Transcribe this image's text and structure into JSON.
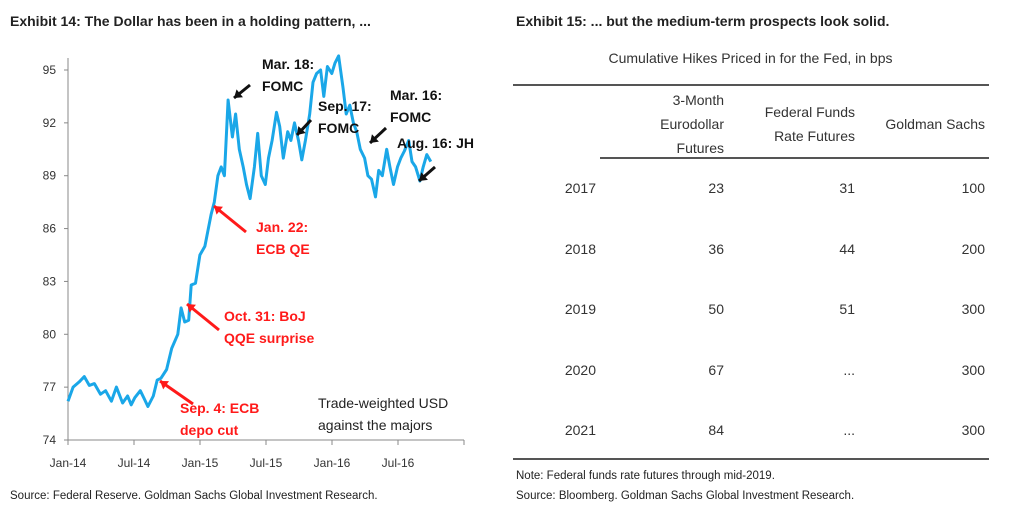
{
  "left": {
    "title": "Exhibit 14: The Dollar has been in a holding pattern, ...",
    "source": "Source: Federal Reserve. Goldman Sachs Global Investment Research."
  },
  "right": {
    "title": "Exhibit 15: ... but the medium-term prospects look solid.",
    "subtitle": "Cumulative Hikes Priced in for the Fed, in bps",
    "columns": [
      {
        "lines": [
          "3-Month",
          "Eurodollar",
          "Futures"
        ]
      },
      {
        "lines": [
          "Federal Funds",
          "Rate Futures"
        ]
      },
      {
        "lines": [
          "Goldman Sachs"
        ]
      }
    ],
    "rows": [
      {
        "year": "2017",
        "values": [
          "23",
          "31",
          "100"
        ]
      },
      {
        "year": "2018",
        "values": [
          "36",
          "44",
          "200"
        ]
      },
      {
        "year": "2019",
        "values": [
          "50",
          "51",
          "300"
        ]
      },
      {
        "year": "2020",
        "values": [
          "67",
          "...",
          "300"
        ]
      },
      {
        "year": "2021",
        "values": [
          "84",
          "...",
          "300"
        ]
      }
    ],
    "note": "Note: Federal funds rate futures through mid-2019.",
    "source": "Source: Bloomberg. Goldman Sachs Global Investment Research."
  },
  "chart_data": {
    "type": "line",
    "title": "Exhibit 14: The Dollar has been in a holding pattern, ...",
    "xlabel": "",
    "ylabel": "",
    "xlim": [
      "2014-01-01",
      "2017-01-01"
    ],
    "ylim": [
      74,
      95
    ],
    "x_ticks": [
      "Jan-14",
      "Jul-14",
      "Jan-15",
      "Jul-15",
      "Jan-16",
      "Jul-16"
    ],
    "y_ticks": [
      "74",
      "77",
      "80",
      "83",
      "86",
      "89",
      "92",
      "95"
    ],
    "grid": false,
    "line_color": "#1aa7e8",
    "series_label": [
      "Trade-weighted USD",
      "against the majors"
    ],
    "annotations": [
      {
        "lines": [
          "Mar. 18:",
          "FOMC"
        ],
        "color": "#111111"
      },
      {
        "lines": [
          "Sep. 17:",
          "FOMC"
        ],
        "color": "#111111"
      },
      {
        "lines": [
          "Mar. 16:",
          "FOMC"
        ],
        "color": "#111111"
      },
      {
        "lines": [
          "Aug. 16: JH"
        ],
        "color": "#111111"
      },
      {
        "lines": [
          "Jan. 22:",
          "ECB QE"
        ],
        "color": "#ff1a1a"
      },
      {
        "lines": [
          "Oct. 31:  BoJ",
          "QQE surprise"
        ],
        "color": "#ff1a1a"
      },
      {
        "lines": [
          "Sep. 4: ECB",
          "depo cut"
        ],
        "color": "#ff1a1a"
      }
    ],
    "x": [
      "2014-01-01",
      "2014-01-15",
      "2014-02-01",
      "2014-02-15",
      "2014-03-01",
      "2014-03-15",
      "2014-04-01",
      "2014-04-15",
      "2014-05-01",
      "2014-05-15",
      "2014-06-01",
      "2014-06-15",
      "2014-06-25",
      "2014-07-05",
      "2014-07-20",
      "2014-08-01",
      "2014-08-10",
      "2014-08-25",
      "2014-09-05",
      "2014-09-15",
      "2014-10-01",
      "2014-10-15",
      "2014-11-01",
      "2014-11-10",
      "2014-11-20",
      "2014-12-01",
      "2014-12-08",
      "2014-12-20",
      "2015-01-01",
      "2015-01-15",
      "2015-02-01",
      "2015-02-10",
      "2015-02-20",
      "2015-03-01",
      "2015-03-10",
      "2015-03-20",
      "2015-04-01",
      "2015-04-10",
      "2015-04-20",
      "2015-05-01",
      "2015-05-10",
      "2015-05-20",
      "2015-06-01",
      "2015-06-10",
      "2015-06-20",
      "2015-07-01",
      "2015-07-10",
      "2015-07-20",
      "2015-08-01",
      "2015-08-10",
      "2015-08-20",
      "2015-09-01",
      "2015-09-10",
      "2015-09-20",
      "2015-10-01",
      "2015-10-10",
      "2015-10-20",
      "2015-11-01",
      "2015-11-10",
      "2015-11-20",
      "2015-12-01",
      "2015-12-10",
      "2015-12-20",
      "2016-01-01",
      "2016-01-10",
      "2016-01-20",
      "2016-02-01",
      "2016-02-10",
      "2016-02-20",
      "2016-03-01",
      "2016-03-10",
      "2016-03-20",
      "2016-04-01",
      "2016-04-10",
      "2016-04-20",
      "2016-05-01",
      "2016-05-10",
      "2016-05-20",
      "2016-06-01",
      "2016-06-10",
      "2016-06-20",
      "2016-07-01",
      "2016-07-10",
      "2016-07-20",
      "2016-08-01",
      "2016-08-10",
      "2016-08-20",
      "2016-09-01",
      "2016-09-10",
      "2016-09-20",
      "2016-10-01"
    ],
    "y": [
      76.2,
      77.0,
      77.3,
      77.6,
      77.1,
      77.2,
      76.6,
      76.8,
      76.2,
      77.0,
      76.1,
      76.5,
      76.0,
      76.4,
      76.8,
      76.3,
      75.9,
      76.5,
      77.4,
      77.5,
      78.0,
      79.2,
      80.0,
      81.5,
      80.7,
      80.8,
      82.8,
      82.9,
      84.5,
      85.0,
      86.8,
      87.5,
      89.0,
      89.5,
      89.0,
      93.3,
      91.2,
      92.5,
      90.5,
      89.5,
      88.5,
      87.7,
      89.5,
      91.4,
      89.0,
      88.5,
      90.0,
      91.0,
      92.6,
      91.8,
      90.0,
      91.5,
      91.0,
      92.0,
      91.0,
      89.9,
      91.0,
      92.5,
      94.3,
      94.8,
      95.0,
      93.5,
      95.2,
      94.8,
      95.4,
      95.8,
      94.0,
      92.5,
      93.0,
      92.0,
      91.5,
      90.5,
      90.0,
      89.0,
      88.8,
      87.8,
      89.3,
      89.0,
      90.5,
      89.5,
      88.5,
      89.5,
      90.0,
      90.4,
      91.0,
      89.8,
      89.5,
      88.7,
      89.5,
      90.2,
      89.8
    ]
  }
}
